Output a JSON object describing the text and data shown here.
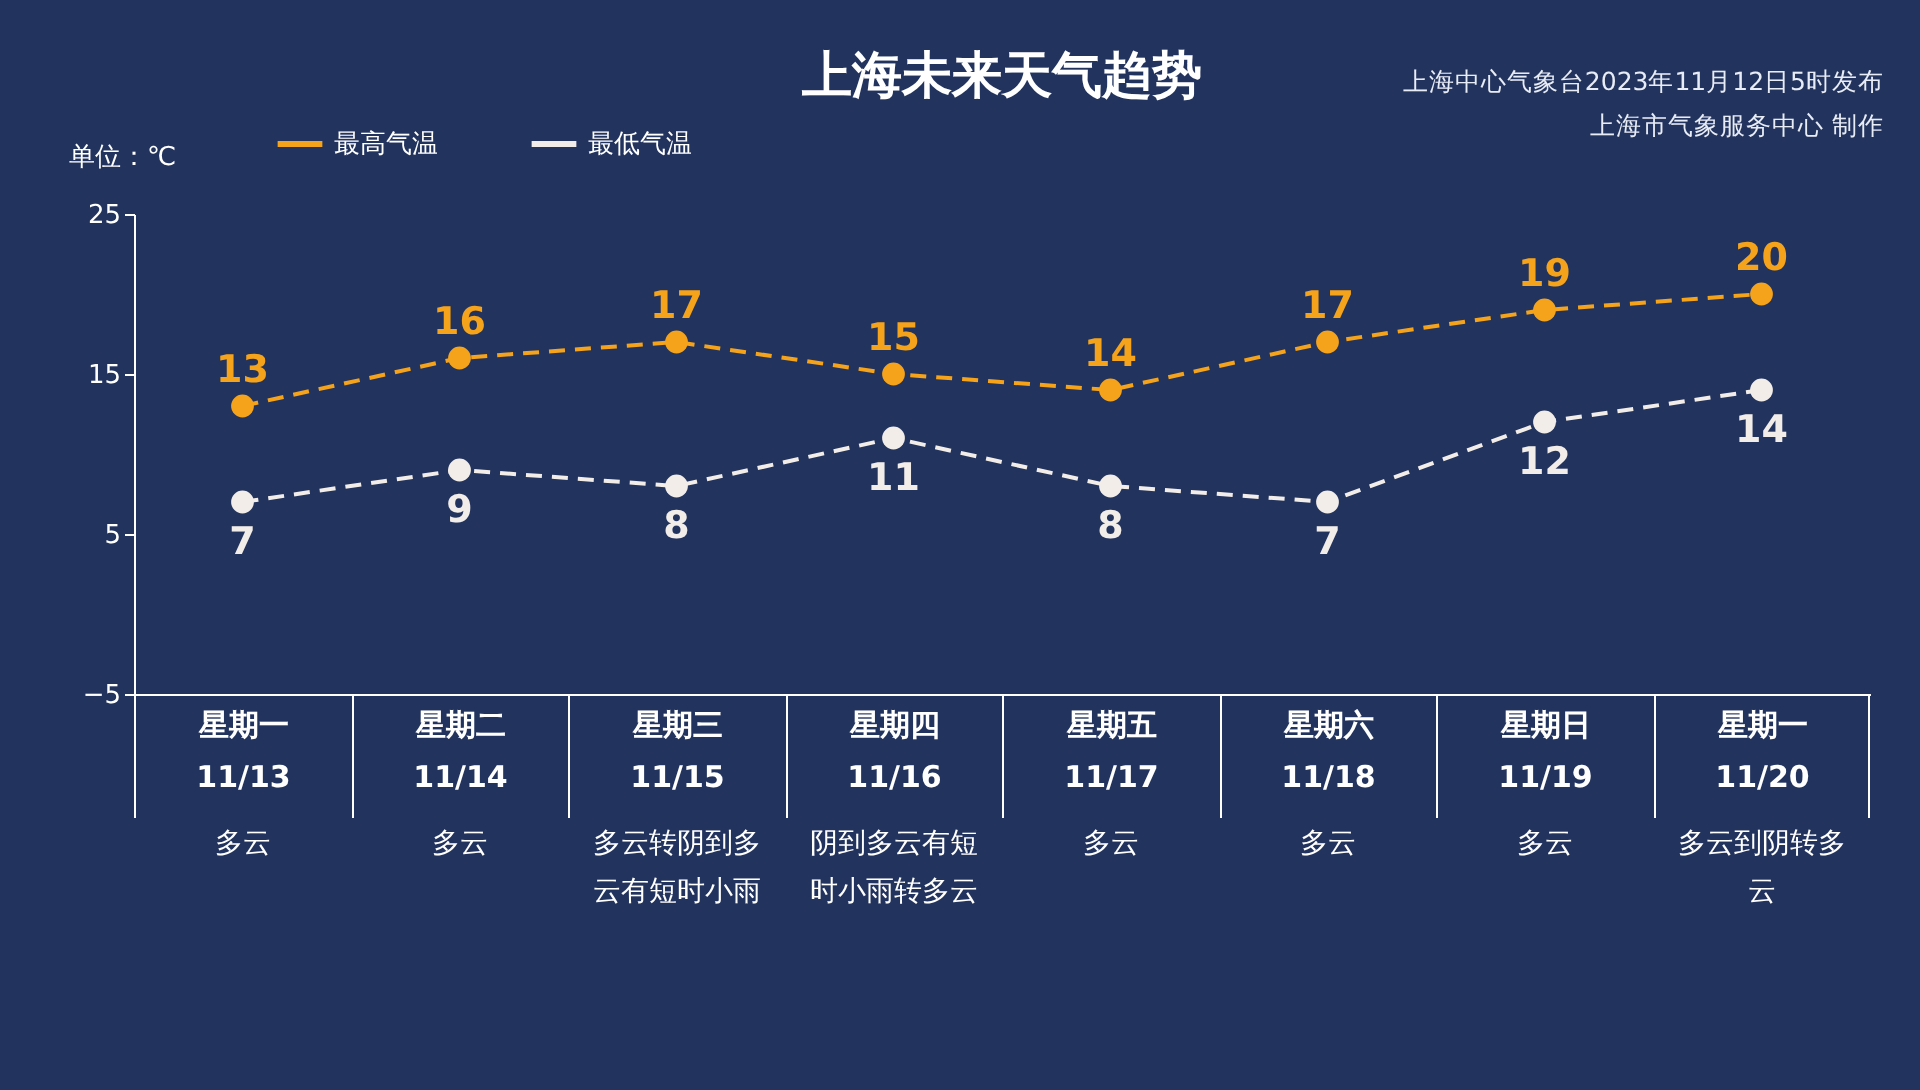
{
  "chart_data": {
    "type": "line",
    "title": "上海未来天气趋势",
    "ylabel": "单位：℃",
    "categories": [
      "星期一 11/13",
      "星期二 11/14",
      "星期三 11/15",
      "星期四 11/16",
      "星期五 11/17",
      "星期六 11/18",
      "星期日 11/19",
      "星期一 11/20"
    ],
    "series": [
      {
        "name": "最高气温",
        "color": "#f5a31a",
        "values": [
          13,
          16,
          17,
          15,
          14,
          17,
          19,
          20
        ]
      },
      {
        "name": "最低气温",
        "color": "#f2ede8",
        "values": [
          7,
          9,
          8,
          11,
          8,
          7,
          12,
          14
        ]
      }
    ],
    "ylim": [
      -5,
      25
    ],
    "yticks": [
      -5,
      5,
      15,
      25
    ],
    "grid": false,
    "legend": "top left",
    "marker": "circle",
    "line_style": "dashed",
    "data_labels": true,
    "annotations": [
      "上海中心气象台2023年11月12日5时发布",
      "上海市气象服务中心 制作",
      "多云",
      "多云",
      "多云转阴到多云有短时小雨",
      "阴到多云有短时小雨转多云",
      "多云",
      "多云",
      "多云",
      "多云到阴转多云"
    ]
  }
}
